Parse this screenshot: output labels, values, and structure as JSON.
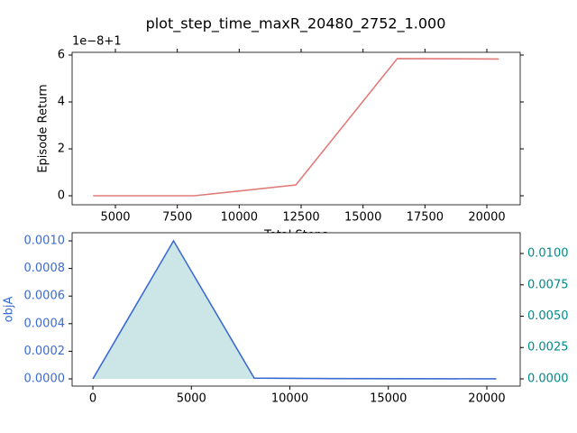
{
  "chart_data": [
    {
      "type": "line",
      "title": "plot_step_time_maxR_20480_2752_1.000",
      "y_label": "Episode Return",
      "x_label": "Total Steps",
      "y_offset_label": "1e−8+1",
      "x": [
        4096,
        8192,
        12288,
        16384,
        20480
      ],
      "series": [
        {
          "color": "#e07b78",
          "values": [
            0,
            0,
            0.46,
            5.85,
            5.83
          ]
        }
      ],
      "xlim": [
        3252,
        21347
      ],
      "xticks": [
        5000,
        7500,
        10000,
        12500,
        15000,
        17500,
        20000
      ],
      "ylim": [
        -0.385,
        6.115
      ],
      "yticks": [
        0,
        2,
        4,
        6
      ]
    },
    {
      "type": "line",
      "y_label": "objA",
      "x": [
        0,
        4096,
        8192,
        12288,
        16384,
        20480
      ],
      "series": [
        {
          "color": "#3a6bd1",
          "values": [
            0,
            0.001,
            5e-06,
            2e-06,
            1e-06,
            5e-07
          ]
        },
        {
          "color": "#cce6e8",
          "axis": "y2",
          "fill": true,
          "values": [
            0,
            0.011,
            5e-05,
            0,
            0,
            0
          ]
        }
      ],
      "xlim": [
        -1053,
        21694
      ],
      "xticks": [
        0,
        5000,
        10000,
        15000,
        20000
      ],
      "ylim": [
        -5.23e-05,
        0.001059
      ],
      "yticks": [
        {
          "value": 0,
          "label": "0.0000"
        },
        {
          "value": 0.0002,
          "label": "0.0002"
        },
        {
          "value": 0.0004,
          "label": "0.0004"
        },
        {
          "value": 0.0006,
          "label": "0.0006"
        },
        {
          "value": 0.0008,
          "label": "0.0008"
        },
        {
          "value": 0.001,
          "label": "0.0010"
        }
      ],
      "y_tick_color": "#3a6bd1",
      "y2lim": [
        -0.000576,
        0.011655
      ],
      "y2ticks": [
        {
          "value": 0,
          "label": "0.0000"
        },
        {
          "value": 0.0025,
          "label": "0.0025"
        },
        {
          "value": 0.005,
          "label": "0.0050"
        },
        {
          "value": 0.0075,
          "label": "0.0075"
        },
        {
          "value": 0.01,
          "label": "0.0100"
        }
      ],
      "y2_tick_color": "#008b8b"
    }
  ]
}
